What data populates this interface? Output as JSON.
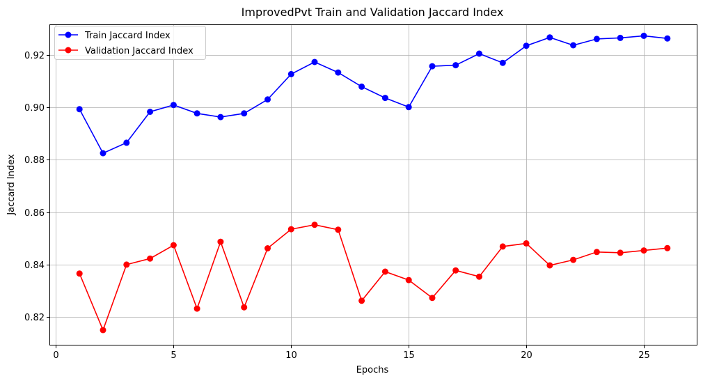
{
  "chart_data": {
    "type": "line",
    "title": "ImprovedPvt Train and Validation Jaccard Index",
    "xlabel": "Epochs",
    "ylabel": "Jaccard Index",
    "xlim": [
      -0.25,
      27.25
    ],
    "ylim": [
      0.8094,
      0.9314
    ],
    "xticks": [
      0,
      5,
      10,
      15,
      20,
      25
    ],
    "yticks": [
      0.82,
      0.84,
      0.86,
      0.88,
      0.9,
      0.92
    ],
    "ytick_labels": [
      "0.82",
      "0.84",
      "0.86",
      "0.88",
      "0.90",
      "0.92"
    ],
    "grid": true,
    "legend_position": "upper-left",
    "x": [
      1,
      2,
      3,
      4,
      5,
      6,
      7,
      8,
      9,
      10,
      11,
      12,
      13,
      14,
      15,
      16,
      17,
      18,
      19,
      20,
      21,
      22,
      23,
      24,
      25,
      26
    ],
    "series": [
      {
        "name": "Train Jaccard Index",
        "color": "#0000ff",
        "marker": "circle",
        "values": [
          0.8993,
          0.8825,
          0.8865,
          0.8983,
          0.9009,
          0.8977,
          0.8963,
          0.8977,
          0.903,
          0.9127,
          0.9173,
          0.9133,
          0.9079,
          0.9036,
          0.9001,
          0.9157,
          0.9161,
          0.9205,
          0.917,
          0.9235,
          0.9267,
          0.9237,
          0.9261,
          0.9265,
          0.9273,
          0.9263
        ]
      },
      {
        "name": "Validation Jaccard Index",
        "color": "#ff0000",
        "marker": "circle",
        "values": [
          0.8366,
          0.815,
          0.84,
          0.8423,
          0.8474,
          0.8232,
          0.8487,
          0.8237,
          0.8462,
          0.8535,
          0.8552,
          0.8533,
          0.8262,
          0.8373,
          0.8341,
          0.8273,
          0.8378,
          0.8354,
          0.8469,
          0.8481,
          0.8397,
          0.8418,
          0.8448,
          0.8445,
          0.8454,
          0.8463
        ]
      }
    ]
  }
}
